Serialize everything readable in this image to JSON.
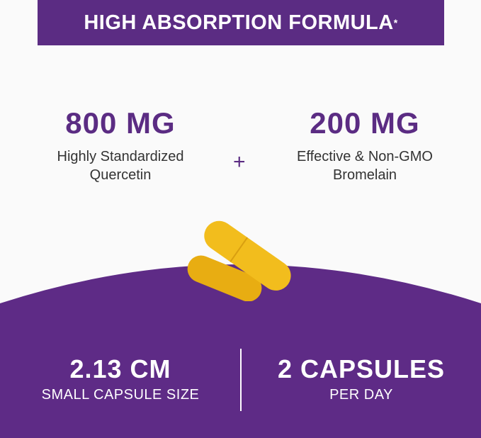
{
  "banner": {
    "title": "HIGH ABSORPTION FORMULA",
    "mark": "*"
  },
  "left": {
    "amount": "800 MG",
    "line1": "Highly Standardized",
    "line2": "Quercetin"
  },
  "plus": "+",
  "right": {
    "amount": "200 MG",
    "line1": "Effective & Non-GMO",
    "line2": "Bromelain"
  },
  "bottom_left": {
    "value": "2.13 CM",
    "label": "SMALL CAPSULE SIZE"
  },
  "bottom_right": {
    "value": "2 CAPSULES",
    "label": "PER DAY"
  },
  "colors": {
    "purple": "#5b2c83",
    "capsule": "#f2bd1d"
  }
}
